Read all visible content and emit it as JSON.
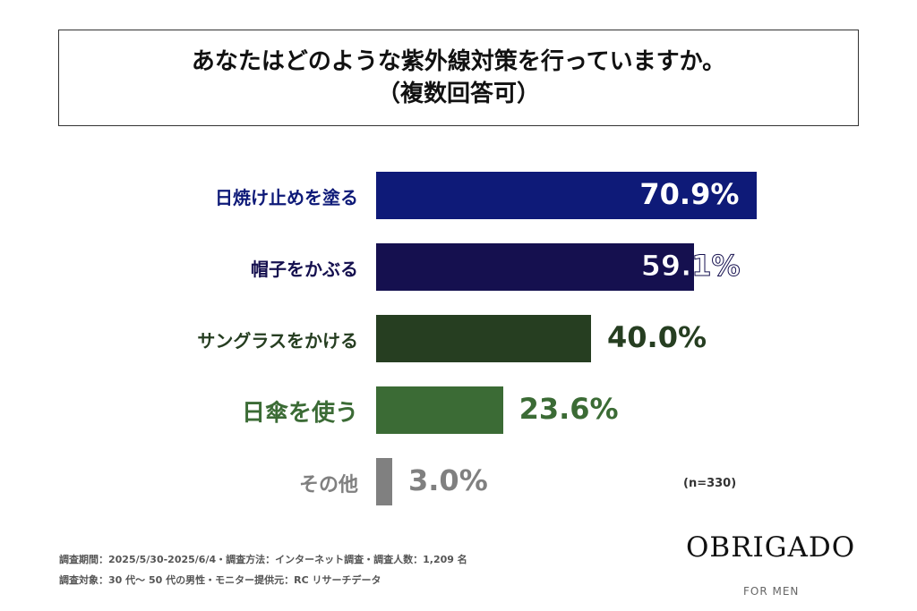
{
  "title": {
    "line1": "あなたはどのような紫外線対策を行っていますか。",
    "line2": "（複数回答可）"
  },
  "chart_data": {
    "type": "bar",
    "orientation": "horizontal",
    "categories": [
      "日焼け止めを塗る",
      "帽子をかぶる",
      "サングラスをかける",
      "日傘を使う",
      "その他"
    ],
    "values": [
      70.9,
      59.1,
      40.0,
      23.6,
      3.0
    ],
    "value_labels": [
      "70.9%",
      "59.1%",
      "40.0%",
      "23.6%",
      "3.0%"
    ],
    "colors": [
      "#0e1a78",
      "#15104f",
      "#263e21",
      "#3b6b35",
      "#808080"
    ],
    "unit": "%",
    "xlim": [
      0,
      100
    ],
    "grid": false,
    "annotation": "(n=330)"
  },
  "footer": {
    "note1": "調査期間：2025/5/30-2025/6/4・調査方法：インターネット調査・調査人数：1,209 名",
    "note2": "調査対象：30 代～ 50 代の男性・モニター提供元：RC リサーチデータ",
    "logo": "OBRIGADO",
    "logo_sub": "FOR MEN"
  }
}
